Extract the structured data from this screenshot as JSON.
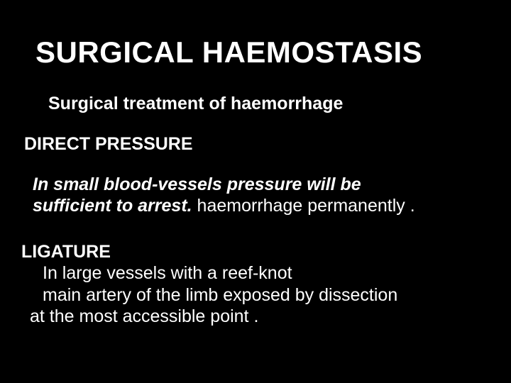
{
  "slide": {
    "background_color": "#000000",
    "text_color": "#ffffff",
    "title": "SURGICAL HAEMOSTASIS",
    "title_fontsize": 42,
    "title_fontweight": 700,
    "subtitle": "Surgical treatment of haemorrhage",
    "subtitle_fontsize": 25,
    "subtitle_fontweight": 700,
    "section1": {
      "heading": "DIRECT PRESSURE",
      "heading_fontsize": 25,
      "heading_fontweight": 700,
      "body_italic_part1": "In small blood-vessels pressure will be",
      "body_italic_part2": "sufficient to arrest. ",
      "body_plain_part": "haemorrhage permanently .",
      "body_fontsize": 25,
      "italic": true
    },
    "section2": {
      "heading": "LIGATURE",
      "heading_fontsize": 25,
      "heading_fontweight": 700,
      "line1": "In large vessels  with a reef-knot",
      "line2": "main artery of the limb  exposed by dissection",
      "line3": "at the most accessible point .",
      "body_fontsize": 25,
      "body_fontweight": 400
    }
  }
}
